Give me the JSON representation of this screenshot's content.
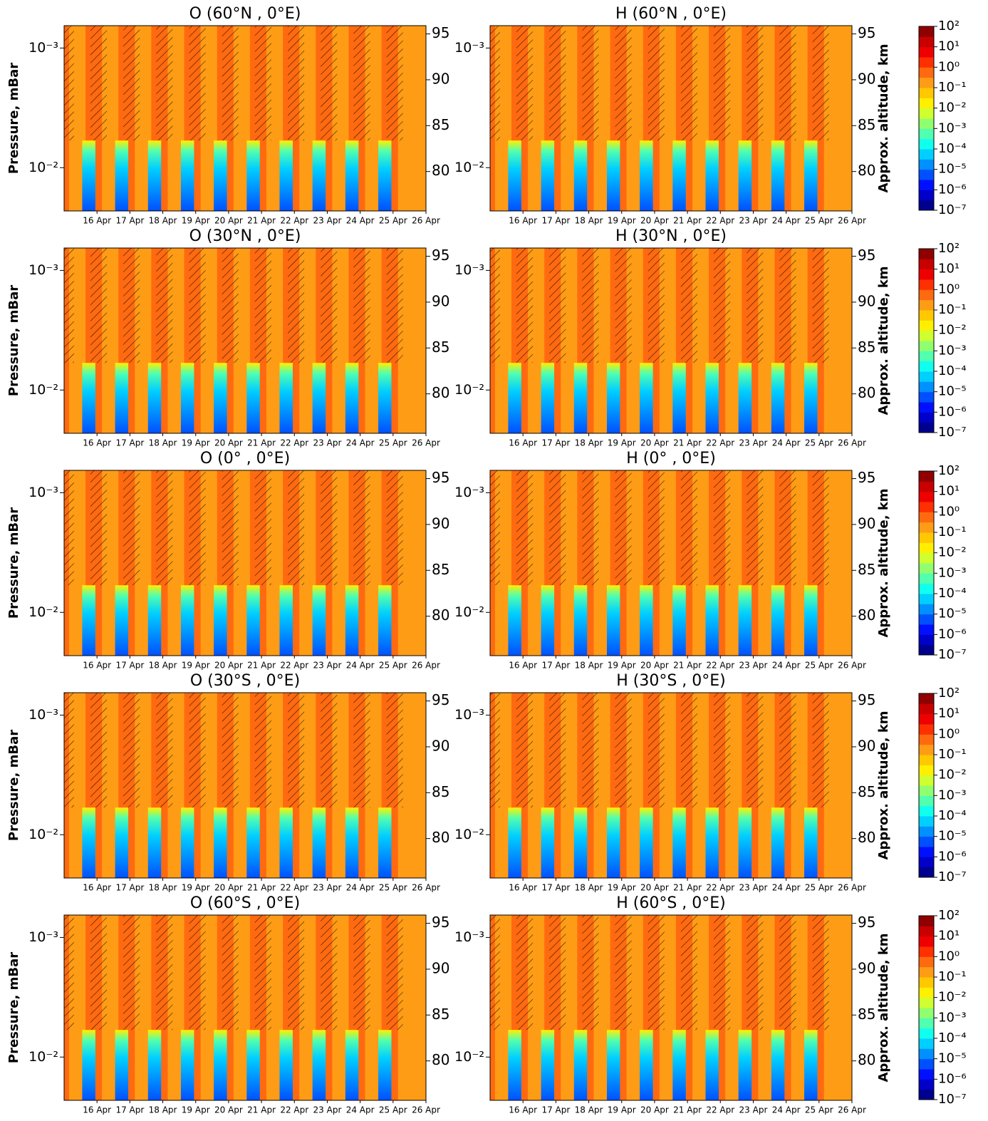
{
  "chart_data": [
    {
      "type": "contour",
      "title": "O   (60°N , 0°E)",
      "ylabel": "Pressure, mBar",
      "xlim": [
        15,
        26
      ],
      "xticks": [
        {
          "value": 16,
          "label": "16 Apr"
        },
        {
          "value": 17,
          "label": "17 Apr"
        },
        {
          "value": 18,
          "label": "18 Apr"
        },
        {
          "value": 19,
          "label": "19 Apr"
        },
        {
          "value": 20,
          "label": "20 Apr"
        },
        {
          "value": 21,
          "label": "21 Apr"
        },
        {
          "value": 22,
          "label": "22 Apr"
        },
        {
          "value": 23,
          "label": "23 Apr"
        },
        {
          "value": 24,
          "label": "24 Apr"
        },
        {
          "value": 25,
          "label": "25 Apr"
        },
        {
          "value": 26,
          "label": "26 Apr"
        }
      ],
      "ylim": [
        0.023,
        0.00065
      ],
      "yscale": "log",
      "yticks": [
        {
          "value": 0.01,
          "label": "10⁻²"
        },
        {
          "value": 0.001,
          "label": "10⁻³"
        }
      ],
      "y2lim": [
        75.7,
        95.9
      ],
      "y2ticks": [
        80,
        85,
        90,
        95
      ]
    },
    {
      "type": "contour",
      "title": "H   (60°N , 0°E)",
      "y2label": "Approx. altitude, km",
      "xlim": [
        15,
        26
      ],
      "xticks": [
        {
          "value": 16,
          "label": "16 Apr"
        },
        {
          "value": 17,
          "label": "17 Apr"
        },
        {
          "value": 18,
          "label": "18 Apr"
        },
        {
          "value": 19,
          "label": "19 Apr"
        },
        {
          "value": 20,
          "label": "20 Apr"
        },
        {
          "value": 21,
          "label": "21 Apr"
        },
        {
          "value": 22,
          "label": "22 Apr"
        },
        {
          "value": 23,
          "label": "23 Apr"
        },
        {
          "value": 24,
          "label": "24 Apr"
        },
        {
          "value": 25,
          "label": "25 Apr"
        },
        {
          "value": 26,
          "label": "26 Apr"
        }
      ],
      "ylim": [
        0.023,
        0.00065
      ],
      "yscale": "log",
      "yticks": [
        {
          "value": 0.01,
          "label": "10⁻²"
        },
        {
          "value": 0.001,
          "label": "10⁻³"
        }
      ],
      "y2lim": [
        75.7,
        95.9
      ],
      "y2ticks": [
        80,
        85,
        90,
        95
      ]
    },
    {
      "type": "colorbar",
      "clim": [
        1e-07,
        100
      ],
      "scale": "log",
      "ticks": [
        {
          "value": 100,
          "label": "10²"
        },
        {
          "value": 10,
          "label": "10¹"
        },
        {
          "value": 1,
          "label": "10⁰"
        },
        {
          "value": 0.1,
          "label": "10⁻¹"
        },
        {
          "value": 0.01,
          "label": "10⁻²"
        },
        {
          "value": 0.001,
          "label": "10⁻³"
        },
        {
          "value": 0.0001,
          "label": "10⁻⁴"
        },
        {
          "value": 1e-05,
          "label": "10⁻⁵"
        },
        {
          "value": 1e-06,
          "label": "10⁻⁶"
        },
        {
          "value": 1e-07,
          "label": "10⁻⁷"
        }
      ],
      "colors": [
        "#00008f",
        "#0000c8",
        "#0010ff",
        "#0050ff",
        "#0090ff",
        "#00cfff",
        "#10ffef",
        "#50ffaf",
        "#90ff6f",
        "#cfff30",
        "#ffef00",
        "#ffc800",
        "#ff9c16",
        "#ff6a10",
        "#ff3000",
        "#ef0000",
        "#c80000",
        "#900000"
      ]
    },
    {
      "type": "contour",
      "title": "O   (30°N , 0°E)",
      "ylabel": "Pressure, mBar",
      "xlim": [
        15,
        26
      ],
      "xticks": [
        {
          "value": 16,
          "label": "16 Apr"
        },
        {
          "value": 17,
          "label": "17 Apr"
        },
        {
          "value": 18,
          "label": "18 Apr"
        },
        {
          "value": 19,
          "label": "19 Apr"
        },
        {
          "value": 20,
          "label": "20 Apr"
        },
        {
          "value": 21,
          "label": "21 Apr"
        },
        {
          "value": 22,
          "label": "22 Apr"
        },
        {
          "value": 23,
          "label": "23 Apr"
        },
        {
          "value": 24,
          "label": "24 Apr"
        },
        {
          "value": 25,
          "label": "25 Apr"
        },
        {
          "value": 26,
          "label": "26 Apr"
        }
      ],
      "ylim": [
        0.023,
        0.00065
      ],
      "yscale": "log",
      "yticks": [
        {
          "value": 0.01,
          "label": "10⁻²"
        },
        {
          "value": 0.001,
          "label": "10⁻³"
        }
      ],
      "y2lim": [
        75.7,
        95.9
      ],
      "y2ticks": [
        80,
        85,
        90,
        95
      ]
    },
    {
      "type": "contour",
      "title": "H   (30°N , 0°E)",
      "y2label": "Approx. altitude, km",
      "xlim": [
        15,
        26
      ],
      "xticks": [
        {
          "value": 16,
          "label": "16 Apr"
        },
        {
          "value": 17,
          "label": "17 Apr"
        },
        {
          "value": 18,
          "label": "18 Apr"
        },
        {
          "value": 19,
          "label": "19 Apr"
        },
        {
          "value": 20,
          "label": "20 Apr"
        },
        {
          "value": 21,
          "label": "21 Apr"
        },
        {
          "value": 22,
          "label": "22 Apr"
        },
        {
          "value": 23,
          "label": "23 Apr"
        },
        {
          "value": 24,
          "label": "24 Apr"
        },
        {
          "value": 25,
          "label": "25 Apr"
        },
        {
          "value": 26,
          "label": "26 Apr"
        }
      ],
      "ylim": [
        0.023,
        0.00065
      ],
      "yscale": "log",
      "yticks": [
        {
          "value": 0.01,
          "label": "10⁻²"
        },
        {
          "value": 0.001,
          "label": "10⁻³"
        }
      ],
      "y2lim": [
        75.7,
        95.9
      ],
      "y2ticks": [
        80,
        85,
        90,
        95
      ]
    },
    {
      "type": "colorbar",
      "clim": [
        1e-07,
        100
      ],
      "scale": "log",
      "ticks": [
        {
          "value": 100,
          "label": "10²"
        },
        {
          "value": 10,
          "label": "10¹"
        },
        {
          "value": 1,
          "label": "10⁰"
        },
        {
          "value": 0.1,
          "label": "10⁻¹"
        },
        {
          "value": 0.01,
          "label": "10⁻²"
        },
        {
          "value": 0.001,
          "label": "10⁻³"
        },
        {
          "value": 0.0001,
          "label": "10⁻⁴"
        },
        {
          "value": 1e-05,
          "label": "10⁻⁵"
        },
        {
          "value": 1e-06,
          "label": "10⁻⁶"
        },
        {
          "value": 1e-07,
          "label": "10⁻⁷"
        }
      ],
      "colors": [
        "#00008f",
        "#0000c8",
        "#0010ff",
        "#0050ff",
        "#0090ff",
        "#00cfff",
        "#10ffef",
        "#50ffaf",
        "#90ff6f",
        "#cfff30",
        "#ffef00",
        "#ffc800",
        "#ff9c16",
        "#ff6a10",
        "#ff3000",
        "#ef0000",
        "#c80000",
        "#900000"
      ]
    },
    {
      "type": "contour",
      "title": "O   (0°   , 0°E)",
      "ylabel": "Pressure, mBar",
      "xlim": [
        15,
        26
      ],
      "xticks": [
        {
          "value": 16,
          "label": "16 Apr"
        },
        {
          "value": 17,
          "label": "17 Apr"
        },
        {
          "value": 18,
          "label": "18 Apr"
        },
        {
          "value": 19,
          "label": "19 Apr"
        },
        {
          "value": 20,
          "label": "20 Apr"
        },
        {
          "value": 21,
          "label": "21 Apr"
        },
        {
          "value": 22,
          "label": "22 Apr"
        },
        {
          "value": 23,
          "label": "23 Apr"
        },
        {
          "value": 24,
          "label": "24 Apr"
        },
        {
          "value": 25,
          "label": "25 Apr"
        },
        {
          "value": 26,
          "label": "26 Apr"
        }
      ],
      "ylim": [
        0.023,
        0.00065
      ],
      "yscale": "log",
      "yticks": [
        {
          "value": 0.01,
          "label": "10⁻²"
        },
        {
          "value": 0.001,
          "label": "10⁻³"
        }
      ],
      "y2lim": [
        75.7,
        95.9
      ],
      "y2ticks": [
        80,
        85,
        90,
        95
      ]
    },
    {
      "type": "contour",
      "title": "H   (0°   , 0°E)",
      "y2label": "Approx. altitude, km",
      "xlim": [
        15,
        26
      ],
      "xticks": [
        {
          "value": 16,
          "label": "16 Apr"
        },
        {
          "value": 17,
          "label": "17 Apr"
        },
        {
          "value": 18,
          "label": "18 Apr"
        },
        {
          "value": 19,
          "label": "19 Apr"
        },
        {
          "value": 20,
          "label": "20 Apr"
        },
        {
          "value": 21,
          "label": "21 Apr"
        },
        {
          "value": 22,
          "label": "22 Apr"
        },
        {
          "value": 23,
          "label": "23 Apr"
        },
        {
          "value": 24,
          "label": "24 Apr"
        },
        {
          "value": 25,
          "label": "25 Apr"
        },
        {
          "value": 26,
          "label": "26 Apr"
        }
      ],
      "ylim": [
        0.023,
        0.00065
      ],
      "yscale": "log",
      "yticks": [
        {
          "value": 0.01,
          "label": "10⁻²"
        },
        {
          "value": 0.001,
          "label": "10⁻³"
        }
      ],
      "y2lim": [
        75.7,
        95.9
      ],
      "y2ticks": [
        80,
        85,
        90,
        95
      ]
    },
    {
      "type": "colorbar",
      "clim": [
        1e-07,
        100
      ],
      "scale": "log",
      "ticks": [
        {
          "value": 100,
          "label": "10²"
        },
        {
          "value": 10,
          "label": "10¹"
        },
        {
          "value": 1,
          "label": "10⁰"
        },
        {
          "value": 0.1,
          "label": "10⁻¹"
        },
        {
          "value": 0.01,
          "label": "10⁻²"
        },
        {
          "value": 0.001,
          "label": "10⁻³"
        },
        {
          "value": 0.0001,
          "label": "10⁻⁴"
        },
        {
          "value": 1e-05,
          "label": "10⁻⁵"
        },
        {
          "value": 1e-06,
          "label": "10⁻⁶"
        },
        {
          "value": 1e-07,
          "label": "10⁻⁷"
        }
      ],
      "colors": [
        "#00008f",
        "#0000c8",
        "#0010ff",
        "#0050ff",
        "#0090ff",
        "#00cfff",
        "#10ffef",
        "#50ffaf",
        "#90ff6f",
        "#cfff30",
        "#ffef00",
        "#ffc800",
        "#ff9c16",
        "#ff6a10",
        "#ff3000",
        "#ef0000",
        "#c80000",
        "#900000"
      ]
    },
    {
      "type": "contour",
      "title": "O   (30°S , 0°E)",
      "ylabel": "Pressure, mBar",
      "xlim": [
        15,
        26
      ],
      "xticks": [
        {
          "value": 16,
          "label": "16 Apr"
        },
        {
          "value": 17,
          "label": "17 Apr"
        },
        {
          "value": 18,
          "label": "18 Apr"
        },
        {
          "value": 19,
          "label": "19 Apr"
        },
        {
          "value": 20,
          "label": "20 Apr"
        },
        {
          "value": 21,
          "label": "21 Apr"
        },
        {
          "value": 22,
          "label": "22 Apr"
        },
        {
          "value": 23,
          "label": "23 Apr"
        },
        {
          "value": 24,
          "label": "24 Apr"
        },
        {
          "value": 25,
          "label": "25 Apr"
        },
        {
          "value": 26,
          "label": "26 Apr"
        }
      ],
      "ylim": [
        0.023,
        0.00065
      ],
      "yscale": "log",
      "yticks": [
        {
          "value": 0.01,
          "label": "10⁻²"
        },
        {
          "value": 0.001,
          "label": "10⁻³"
        }
      ],
      "y2lim": [
        75.7,
        95.9
      ],
      "y2ticks": [
        80,
        85,
        90,
        95
      ]
    },
    {
      "type": "contour",
      "title": "H   (30°S , 0°E)",
      "y2label": "Approx. altitude, km",
      "xlim": [
        15,
        26
      ],
      "xticks": [
        {
          "value": 16,
          "label": "16 Apr"
        },
        {
          "value": 17,
          "label": "17 Apr"
        },
        {
          "value": 18,
          "label": "18 Apr"
        },
        {
          "value": 19,
          "label": "19 Apr"
        },
        {
          "value": 20,
          "label": "20 Apr"
        },
        {
          "value": 21,
          "label": "21 Apr"
        },
        {
          "value": 22,
          "label": "22 Apr"
        },
        {
          "value": 23,
          "label": "23 Apr"
        },
        {
          "value": 24,
          "label": "24 Apr"
        },
        {
          "value": 25,
          "label": "25 Apr"
        },
        {
          "value": 26,
          "label": "26 Apr"
        }
      ],
      "ylim": [
        0.023,
        0.00065
      ],
      "yscale": "log",
      "yticks": [
        {
          "value": 0.01,
          "label": "10⁻²"
        },
        {
          "value": 0.001,
          "label": "10⁻³"
        }
      ],
      "y2lim": [
        75.7,
        95.9
      ],
      "y2ticks": [
        80,
        85,
        90,
        95
      ]
    },
    {
      "type": "colorbar",
      "clim": [
        1e-07,
        100
      ],
      "scale": "log",
      "ticks": [
        {
          "value": 100,
          "label": "10²"
        },
        {
          "value": 10,
          "label": "10¹"
        },
        {
          "value": 1,
          "label": "10⁰"
        },
        {
          "value": 0.1,
          "label": "10⁻¹"
        },
        {
          "value": 0.01,
          "label": "10⁻²"
        },
        {
          "value": 0.001,
          "label": "10⁻³"
        },
        {
          "value": 0.0001,
          "label": "10⁻⁴"
        },
        {
          "value": 1e-05,
          "label": "10⁻⁵"
        },
        {
          "value": 1e-06,
          "label": "10⁻⁶"
        },
        {
          "value": 1e-07,
          "label": "10⁻⁷"
        }
      ],
      "colors": [
        "#00008f",
        "#0000c8",
        "#0010ff",
        "#0050ff",
        "#0090ff",
        "#00cfff",
        "#10ffef",
        "#50ffaf",
        "#90ff6f",
        "#cfff30",
        "#ffef00",
        "#ffc800",
        "#ff9c16",
        "#ff6a10",
        "#ff3000",
        "#ef0000",
        "#c80000",
        "#900000"
      ]
    },
    {
      "type": "contour",
      "title": "O   (60°S , 0°E)",
      "ylabel": "Pressure, mBar",
      "xlim": [
        15,
        26
      ],
      "xticks": [
        {
          "value": 16,
          "label": "16 Apr"
        },
        {
          "value": 17,
          "label": "17 Apr"
        },
        {
          "value": 18,
          "label": "18 Apr"
        },
        {
          "value": 19,
          "label": "19 Apr"
        },
        {
          "value": 20,
          "label": "20 Apr"
        },
        {
          "value": 21,
          "label": "21 Apr"
        },
        {
          "value": 22,
          "label": "22 Apr"
        },
        {
          "value": 23,
          "label": "23 Apr"
        },
        {
          "value": 24,
          "label": "24 Apr"
        },
        {
          "value": 25,
          "label": "25 Apr"
        },
        {
          "value": 26,
          "label": "26 Apr"
        }
      ],
      "ylim": [
        0.023,
        0.00065
      ],
      "yscale": "log",
      "yticks": [
        {
          "value": 0.01,
          "label": "10⁻²"
        },
        {
          "value": 0.001,
          "label": "10⁻³"
        }
      ],
      "y2lim": [
        75.7,
        95.9
      ],
      "y2ticks": [
        80,
        85,
        90,
        95
      ]
    },
    {
      "type": "contour",
      "title": "H   (60°S , 0°E)",
      "y2label": "Approx. altitude, km",
      "xlim": [
        15,
        26
      ],
      "xticks": [
        {
          "value": 16,
          "label": "16 Apr"
        },
        {
          "value": 17,
          "label": "17 Apr"
        },
        {
          "value": 18,
          "label": "18 Apr"
        },
        {
          "value": 19,
          "label": "19 Apr"
        },
        {
          "value": 20,
          "label": "20 Apr"
        },
        {
          "value": 21,
          "label": "21 Apr"
        },
        {
          "value": 22,
          "label": "22 Apr"
        },
        {
          "value": 23,
          "label": "23 Apr"
        },
        {
          "value": 24,
          "label": "24 Apr"
        },
        {
          "value": 25,
          "label": "25 Apr"
        },
        {
          "value": 26,
          "label": "26 Apr"
        }
      ],
      "ylim": [
        0.023,
        0.00065
      ],
      "yscale": "log",
      "yticks": [
        {
          "value": 0.01,
          "label": "10⁻²"
        },
        {
          "value": 0.001,
          "label": "10⁻³"
        }
      ],
      "y2lim": [
        75.7,
        95.9
      ],
      "y2ticks": [
        80,
        85,
        90,
        95
      ]
    },
    {
      "type": "colorbar",
      "clim": [
        1e-07,
        100
      ],
      "scale": "log",
      "ticks": [
        {
          "value": 100,
          "label": "10²"
        },
        {
          "value": 10,
          "label": "10¹"
        },
        {
          "value": 1,
          "label": "10⁰"
        },
        {
          "value": 0.1,
          "label": "10⁻¹"
        },
        {
          "value": 0.01,
          "label": "10⁻²"
        },
        {
          "value": 0.001,
          "label": "10⁻³"
        },
        {
          "value": 0.0001,
          "label": "10⁻⁴"
        },
        {
          "value": 1e-05,
          "label": "10⁻⁵"
        },
        {
          "value": 1e-06,
          "label": "10⁻⁶"
        },
        {
          "value": 1e-07,
          "label": "10⁻⁷"
        }
      ],
      "colors": [
        "#00008f",
        "#0000c8",
        "#0010ff",
        "#0050ff",
        "#0090ff",
        "#00cfff",
        "#10ffef",
        "#50ffaf",
        "#90ff6f",
        "#cfff30",
        "#ffef00",
        "#ffc800",
        "#ff9c16",
        "#ff6a10",
        "#ff3000",
        "#ef0000",
        "#c80000",
        "#900000"
      ]
    }
  ]
}
